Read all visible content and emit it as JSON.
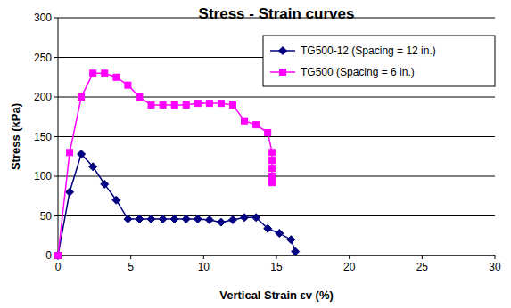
{
  "chart_data": {
    "type": "line",
    "title": "Stress - Strain curves",
    "x_label": "Vertical Strain εv (%)",
    "y_label": "Stress (kPa)",
    "xlim": [
      0,
      30
    ],
    "xticks": [
      0,
      5,
      10,
      15,
      20,
      25,
      30
    ],
    "ylim": [
      0,
      300
    ],
    "yticks": [
      0,
      50,
      100,
      150,
      200,
      250,
      300
    ],
    "grid": true,
    "legend": "top-right",
    "series": [
      {
        "name": "TG500-12 (Spacing = 12 in.)",
        "color": "#000080",
        "marker": "diamond",
        "line_style": "solid",
        "x": [
          0,
          0.8,
          1.6,
          2.4,
          3.2,
          4,
          4.8,
          5.6,
          6.4,
          7.2,
          8,
          8.8,
          9.6,
          10.4,
          11.2,
          12,
          12.8,
          13.6,
          14.4,
          15.2,
          16,
          16.3
        ],
        "values": [
          0,
          80,
          128,
          112,
          90,
          70,
          46,
          46,
          46,
          46,
          46,
          46,
          46,
          45,
          42,
          45,
          48,
          48,
          34,
          28,
          20,
          5
        ]
      },
      {
        "name": "TG500 (Spacing = 6 in.)",
        "color": "#FF00FF",
        "marker": "square",
        "line_style": "solid",
        "x": [
          0,
          0.8,
          1.6,
          2.4,
          3.2,
          4,
          4.8,
          5.6,
          6.4,
          7.2,
          8,
          8.8,
          9.6,
          10.4,
          11.2,
          12,
          12.8,
          13.6,
          14.4,
          14.7,
          14.7,
          14.7,
          14.7,
          14.7
        ],
        "values": [
          0,
          130,
          200,
          230,
          230,
          225,
          215,
          200,
          190,
          190,
          190,
          190,
          192,
          192,
          192,
          190,
          170,
          165,
          155,
          130,
          120,
          110,
          100,
          92
        ]
      }
    ]
  }
}
